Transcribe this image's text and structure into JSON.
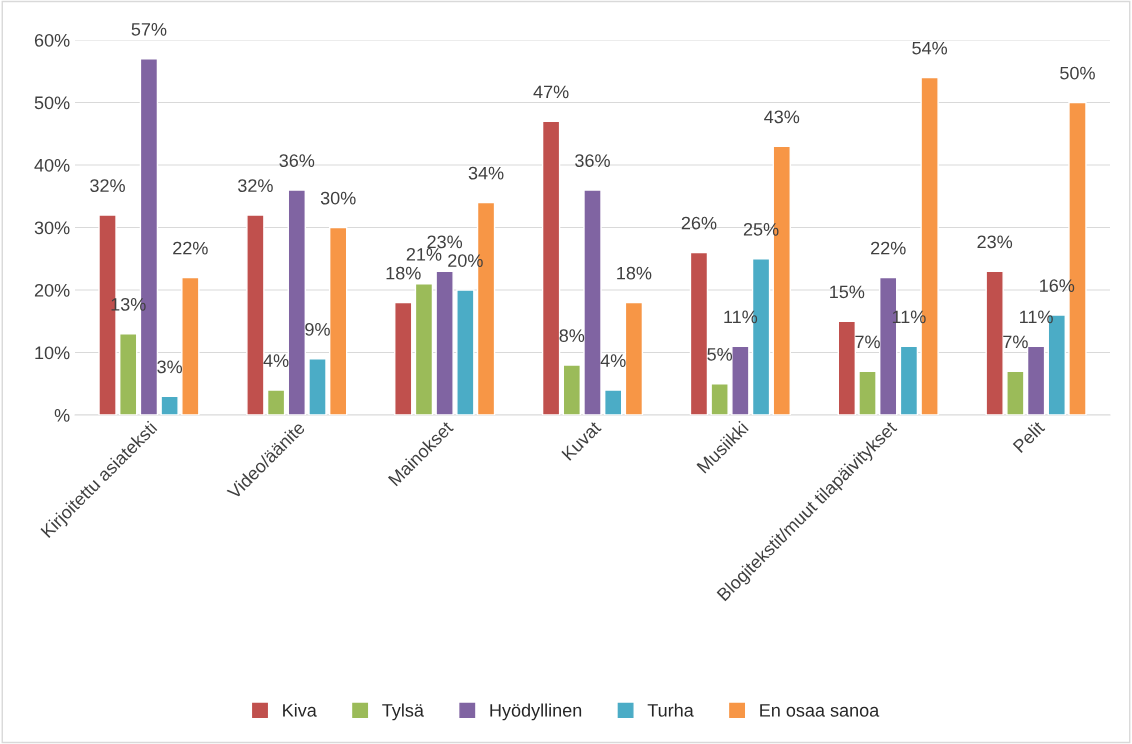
{
  "chart_data": {
    "type": "bar",
    "categories": [
      "Kirjoitettu asiateksti",
      "Video/äänite",
      "Mainokset",
      "Kuvat",
      "Musiikki",
      "Blogitekstit/muut tilapäivitykset",
      "Pelit"
    ],
    "series": [
      {
        "name": "Kiva",
        "color": "#c0504d",
        "values": [
          32,
          32,
          18,
          47,
          26,
          15,
          23
        ],
        "value_labels": [
          "32%",
          "32%",
          "18%",
          "47%",
          "26%",
          "15%",
          "23%"
        ]
      },
      {
        "name": "Tylsä",
        "color": "#9bbb59",
        "values": [
          13,
          4,
          21,
          8,
          5,
          7,
          7
        ],
        "value_labels": [
          "13%",
          "4%",
          "21%",
          "8%",
          "5%",
          "7%",
          "7%"
        ]
      },
      {
        "name": "Hyödyllinen",
        "color": "#8064a2",
        "values": [
          57,
          36,
          23,
          36,
          11,
          22,
          11
        ],
        "value_labels": [
          "57%",
          "36%",
          "23%",
          "36%",
          "11%",
          "22%",
          "11%"
        ]
      },
      {
        "name": "Turha",
        "color": "#4bacc6",
        "values": [
          3,
          9,
          20,
          4,
          25,
          11,
          16
        ],
        "value_labels": [
          "3%",
          "9%",
          "20%",
          "4%",
          "25%",
          "11%",
          "16%"
        ]
      },
      {
        "name": "En osaa sanoa",
        "color": "#f79646",
        "values": [
          22,
          30,
          34,
          18,
          43,
          54,
          50
        ],
        "value_labels": [
          "22%",
          "30%",
          "34%",
          "18%",
          "43%",
          "54%",
          "50%"
        ]
      }
    ],
    "ylim": [
      0,
      60
    ],
    "yticks": [
      {
        "value": 0,
        "label": "%"
      },
      {
        "value": 10,
        "label": "10%"
      },
      {
        "value": 20,
        "label": "20%"
      },
      {
        "value": 30,
        "label": "30%"
      },
      {
        "value": 40,
        "label": "40%"
      },
      {
        "value": 50,
        "label": "50%"
      },
      {
        "value": 60,
        "label": "60%"
      }
    ],
    "grid": "y",
    "legend": "bottom"
  }
}
